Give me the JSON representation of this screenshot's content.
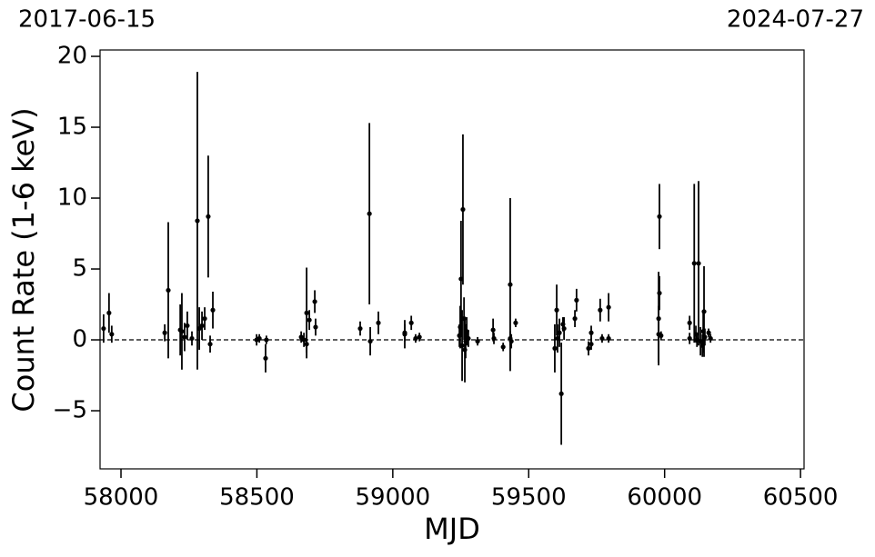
{
  "chart_data": {
    "type": "errorbar",
    "corner_left": "2017-06-15",
    "corner_right": "2024-07-27",
    "xlabel": "MJD",
    "ylabel": "Count Rate (1-6 keV)",
    "xlim": [
      57923,
      60513
    ],
    "ylim": [
      -9.1,
      20.45
    ],
    "xticks": [
      58000,
      58500,
      59000,
      59500,
      60000,
      60500
    ],
    "yticks": [
      {
        "value": -5,
        "label": "−5"
      },
      0,
      5,
      10,
      15,
      20
    ],
    "hline": 0,
    "color": "#000000",
    "x": [
      57936,
      57956,
      57966,
      58161,
      58174,
      58218,
      58224,
      58234,
      58244,
      58261,
      58281,
      58288,
      58298,
      58308,
      58321,
      58328,
      58338,
      58499,
      58509,
      58532,
      58535,
      58663,
      58673,
      58683,
      58683,
      58693,
      58713,
      58716,
      58880,
      58914,
      58917,
      58947,
      59044,
      59044,
      59068,
      59084,
      59098,
      59245,
      59248,
      59251,
      59255,
      59258,
      59262,
      59265,
      59268,
      59272,
      59278,
      59312,
      59369,
      59372,
      59406,
      59432,
      59432,
      59436,
      59452,
      59596,
      59603,
      59606,
      59613,
      59620,
      59626,
      59630,
      59670,
      59676,
      59720,
      59730,
      59730,
      59763,
      59770,
      59794,
      59794,
      59978,
      59981,
      59981,
      59978,
      59987,
      60092,
      60092,
      60109,
      60115,
      60119,
      60125,
      60132,
      60139,
      60142,
      60145,
      60148,
      60162,
      60169
    ],
    "values": [
      0.8,
      1.9,
      0.4,
      0.5,
      3.5,
      0.7,
      0.6,
      0.2,
      1.0,
      0.1,
      8.4,
      0.8,
      1.0,
      1.5,
      8.7,
      -0.3,
      2.1,
      0.0,
      0.1,
      -1.3,
      0.0,
      0.2,
      0.0,
      1.9,
      -0.3,
      1.4,
      2.7,
      0.9,
      0.8,
      8.9,
      -0.1,
      1.2,
      0.5,
      0.4,
      1.2,
      0.1,
      0.2,
      0.3,
      0.9,
      4.3,
      -0.4,
      9.2,
      1.5,
      -0.7,
      -0.1,
      0.6,
      0.1,
      -0.1,
      0.7,
      0.1,
      -0.5,
      3.9,
      0.1,
      -0.1,
      1.2,
      -0.6,
      2.1,
      0.1,
      0.5,
      -3.8,
      1.1,
      0.8,
      1.5,
      2.8,
      -0.6,
      0.5,
      -0.3,
      2.1,
      0.1,
      2.3,
      0.1,
      1.5,
      8.7,
      3.3,
      0.4,
      0.3,
      1.2,
      0.1,
      5.4,
      0.4,
      0.0,
      5.4,
      -0.1,
      -0.4,
      0.6,
      2.0,
      0.2,
      0.5,
      0.1
    ],
    "errors": [
      1.0,
      1.4,
      0.6,
      0.6,
      4.8,
      1.8,
      2.7,
      1.0,
      1.0,
      0.5,
      10.5,
      1.5,
      1.0,
      0.8,
      4.3,
      0.6,
      1.3,
      0.4,
      0.3,
      1.0,
      0.3,
      0.4,
      0.5,
      3.2,
      0.6,
      0.7,
      0.8,
      0.6,
      0.5,
      6.4,
      1.0,
      0.8,
      0.6,
      1.0,
      0.5,
      0.3,
      0.3,
      0.8,
      1.5,
      4.1,
      2.5,
      5.3,
      1.5,
      2.3,
      1.2,
      1.0,
      0.6,
      0.3,
      0.8,
      0.4,
      0.3,
      6.1,
      0.5,
      0.5,
      0.3,
      1.7,
      1.8,
      1.0,
      1.0,
      3.6,
      0.5,
      0.8,
      0.6,
      0.8,
      0.5,
      0.5,
      0.4,
      0.8,
      0.3,
      1.0,
      0.3,
      3.3,
      2.3,
      1.2,
      2.0,
      0.3,
      0.5,
      0.4,
      5.6,
      0.6,
      0.5,
      5.8,
      1.0,
      0.8,
      1.5,
      3.2,
      0.6,
      0.3,
      0.3
    ]
  }
}
